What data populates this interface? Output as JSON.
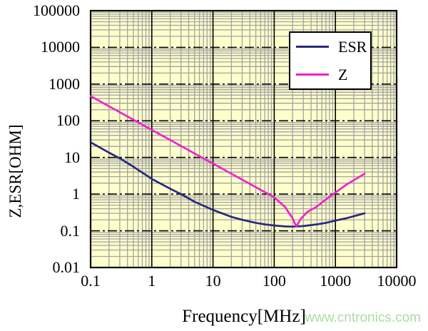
{
  "page": {
    "background": "#ffffff"
  },
  "watermark": {
    "text": "www.cntronics.com",
    "color": "#9fd596"
  },
  "chart_data": {
    "type": "line",
    "title": "",
    "xlabel": "Frequency[MHz]",
    "ylabel": "Z,ESR[OHM]",
    "x_scale": "log",
    "y_scale": "log",
    "xlim": [
      0.1,
      10000
    ],
    "ylim": [
      0.01,
      100000
    ],
    "x_ticks": [
      "0.1",
      "1",
      "10",
      "100",
      "1000",
      "10000"
    ],
    "y_ticks": [
      "0.01",
      "0.1",
      "1",
      "10",
      "100",
      "1000",
      "10000",
      "100000"
    ],
    "grid": {
      "minor": true,
      "minor_color": "#a3a3a3",
      "major_color": "#000000",
      "plot_bg": "#ffffcc",
      "frame_color": "#000000"
    },
    "legend": {
      "position": "top-right",
      "entries": [
        {
          "label": "ESR",
          "color": "#28287d"
        },
        {
          "label": "Z",
          "color": "#ee22cc"
        }
      ]
    },
    "series": [
      {
        "name": "ESR",
        "color": "#28287d",
        "points": [
          [
            0.1,
            26
          ],
          [
            0.2,
            13.5
          ],
          [
            0.3,
            9.5
          ],
          [
            0.5,
            5.6
          ],
          [
            1,
            2.6
          ],
          [
            2,
            1.4
          ],
          [
            3,
            1.0
          ],
          [
            5,
            0.62
          ],
          [
            10,
            0.37
          ],
          [
            20,
            0.24
          ],
          [
            30,
            0.2
          ],
          [
            50,
            0.165
          ],
          [
            70,
            0.15
          ],
          [
            100,
            0.14
          ],
          [
            150,
            0.132
          ],
          [
            200,
            0.13
          ],
          [
            300,
            0.135
          ],
          [
            500,
            0.15
          ],
          [
            700,
            0.165
          ],
          [
            1000,
            0.19
          ],
          [
            1500,
            0.22
          ],
          [
            2000,
            0.25
          ],
          [
            3000,
            0.3
          ]
        ]
      },
      {
        "name": "Z",
        "color": "#ee22cc",
        "points": [
          [
            0.1,
            470
          ],
          [
            0.2,
            248
          ],
          [
            0.5,
            107
          ],
          [
            1,
            56
          ],
          [
            2,
            30
          ],
          [
            5,
            12.8
          ],
          [
            10,
            6.8
          ],
          [
            20,
            3.6
          ],
          [
            50,
            1.55
          ],
          [
            100,
            0.82
          ],
          [
            150,
            0.45
          ],
          [
            200,
            0.22
          ],
          [
            230,
            0.13
          ],
          [
            270,
            0.21
          ],
          [
            350,
            0.33
          ],
          [
            500,
            0.46
          ],
          [
            700,
            0.72
          ],
          [
            1000,
            1.1
          ],
          [
            1500,
            1.8
          ],
          [
            2000,
            2.4
          ],
          [
            3000,
            3.6
          ]
        ]
      }
    ]
  }
}
